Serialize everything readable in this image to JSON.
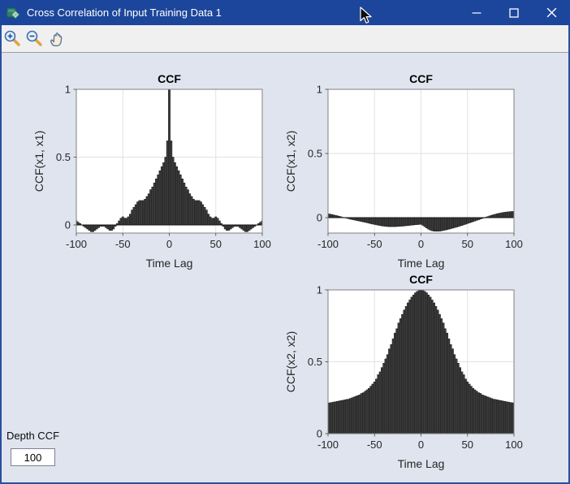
{
  "window": {
    "title": "Cross Correlation of Input Training Data 1",
    "titlebar_color": "#1c469b",
    "controls": [
      "minimize",
      "maximize",
      "close"
    ]
  },
  "toolbar": {
    "buttons": [
      {
        "icon": "zoom-in-icon"
      },
      {
        "icon": "zoom-out-icon"
      },
      {
        "icon": "pan-hand-icon"
      }
    ]
  },
  "panel": {
    "depth_label": "Depth CCF",
    "depth_value": "100"
  },
  "colors": {
    "figure_bg": "#dfe4ef",
    "axes_bg": "#ffffff",
    "bar_fill": "#3d3d3d",
    "bar_edge": "#161616",
    "grid": "#e2e2e2",
    "axes_border": "#818181",
    "text": "#262626"
  },
  "chart_data": [
    {
      "type": "bar",
      "title": "CCF",
      "xlabel": "Time Lag",
      "ylabel": "CCF(x1, x1)",
      "xlim": [
        -100,
        100
      ],
      "ylim": [
        -0.06,
        1
      ],
      "xticks": [
        -100,
        -50,
        0,
        50,
        100
      ],
      "yticks": [
        0,
        0.5,
        1
      ],
      "grid": true,
      "legend": null,
      "lags": [
        -100,
        -98,
        -96,
        -94,
        -92,
        -90,
        -88,
        -86,
        -84,
        -82,
        -80,
        -78,
        -76,
        -74,
        -72,
        -70,
        -68,
        -66,
        -64,
        -62,
        -60,
        -58,
        -56,
        -54,
        -52,
        -50,
        -48,
        -46,
        -44,
        -42,
        -40,
        -38,
        -36,
        -34,
        -32,
        -30,
        -28,
        -26,
        -24,
        -22,
        -20,
        -18,
        -16,
        -14,
        -12,
        -10,
        -8,
        -6,
        -4,
        -2,
        0,
        2,
        4,
        6,
        8,
        10,
        12,
        14,
        16,
        18,
        20,
        22,
        24,
        26,
        28,
        30,
        32,
        34,
        36,
        38,
        40,
        42,
        44,
        46,
        48,
        50,
        52,
        54,
        56,
        58,
        60,
        62,
        64,
        66,
        68,
        70,
        72,
        74,
        76,
        78,
        80,
        82,
        84,
        86,
        88,
        90,
        92,
        94,
        96,
        98,
        100
      ],
      "values": [
        0.03,
        0.02,
        0.01,
        0.0,
        -0.01,
        -0.02,
        -0.03,
        -0.04,
        -0.05,
        -0.05,
        -0.04,
        -0.03,
        -0.02,
        -0.01,
        -0.01,
        -0.01,
        -0.02,
        -0.03,
        -0.04,
        -0.04,
        -0.03,
        -0.01,
        0.01,
        0.03,
        0.05,
        0.06,
        0.05,
        0.05,
        0.06,
        0.08,
        0.11,
        0.13,
        0.15,
        0.17,
        0.18,
        0.18,
        0.18,
        0.19,
        0.21,
        0.23,
        0.26,
        0.28,
        0.31,
        0.34,
        0.37,
        0.4,
        0.43,
        0.46,
        0.5,
        0.62,
        1.0,
        0.62,
        0.5,
        0.46,
        0.43,
        0.4,
        0.37,
        0.34,
        0.31,
        0.28,
        0.26,
        0.23,
        0.21,
        0.19,
        0.18,
        0.18,
        0.18,
        0.17,
        0.15,
        0.13,
        0.11,
        0.08,
        0.06,
        0.05,
        0.05,
        0.06,
        0.05,
        0.03,
        0.01,
        -0.01,
        -0.03,
        -0.04,
        -0.04,
        -0.03,
        -0.02,
        -0.01,
        -0.01,
        -0.01,
        -0.02,
        -0.03,
        -0.04,
        -0.05,
        -0.05,
        -0.04,
        -0.03,
        -0.02,
        -0.01,
        0.0,
        0.01,
        0.02,
        0.03
      ]
    },
    {
      "type": "bar",
      "title": "CCF",
      "xlabel": "Time Lag",
      "ylabel": "CCF(x1, x2)",
      "xlim": [
        -100,
        100
      ],
      "ylim": [
        -0.12,
        1
      ],
      "xticks": [
        -100,
        -50,
        0,
        50,
        100
      ],
      "yticks": [
        0,
        0.5,
        1
      ],
      "grid": true,
      "legend": null,
      "lags": [
        -100,
        -98,
        -96,
        -94,
        -92,
        -90,
        -88,
        -86,
        -84,
        -82,
        -80,
        -78,
        -76,
        -74,
        -72,
        -70,
        -68,
        -66,
        -64,
        -62,
        -60,
        -58,
        -56,
        -54,
        -52,
        -50,
        -48,
        -46,
        -44,
        -42,
        -40,
        -38,
        -36,
        -34,
        -32,
        -30,
        -28,
        -26,
        -24,
        -22,
        -20,
        -18,
        -16,
        -14,
        -12,
        -10,
        -8,
        -6,
        -4,
        -2,
        0,
        2,
        4,
        6,
        8,
        10,
        12,
        14,
        16,
        18,
        20,
        22,
        24,
        26,
        28,
        30,
        32,
        34,
        36,
        38,
        40,
        42,
        44,
        46,
        48,
        50,
        52,
        54,
        56,
        58,
        60,
        62,
        64,
        66,
        68,
        70,
        72,
        74,
        76,
        78,
        80,
        82,
        84,
        86,
        88,
        90,
        92,
        94,
        96,
        98,
        100
      ],
      "values": [
        0.03,
        0.028,
        0.025,
        0.022,
        0.018,
        0.015,
        0.011,
        0.007,
        0.003,
        0.0,
        -0.004,
        -0.008,
        -0.012,
        -0.015,
        -0.018,
        -0.021,
        -0.024,
        -0.027,
        -0.03,
        -0.033,
        -0.036,
        -0.04,
        -0.043,
        -0.047,
        -0.05,
        -0.053,
        -0.056,
        -0.059,
        -0.062,
        -0.064,
        -0.066,
        -0.068,
        -0.069,
        -0.07,
        -0.07,
        -0.07,
        -0.07,
        -0.069,
        -0.068,
        -0.067,
        -0.066,
        -0.065,
        -0.063,
        -0.062,
        -0.06,
        -0.058,
        -0.057,
        -0.055,
        -0.054,
        -0.053,
        -0.052,
        -0.06,
        -0.07,
        -0.08,
        -0.09,
        -0.097,
        -0.102,
        -0.105,
        -0.106,
        -0.106,
        -0.105,
        -0.103,
        -0.1,
        -0.097,
        -0.094,
        -0.09,
        -0.086,
        -0.082,
        -0.078,
        -0.074,
        -0.07,
        -0.065,
        -0.061,
        -0.056,
        -0.051,
        -0.046,
        -0.041,
        -0.036,
        -0.031,
        -0.026,
        -0.021,
        -0.016,
        -0.011,
        -0.006,
        -0.001,
        0.004,
        0.009,
        0.014,
        0.019,
        0.023,
        0.027,
        0.031,
        0.034,
        0.037,
        0.04,
        0.042,
        0.044,
        0.046,
        0.047,
        0.048,
        0.049
      ]
    },
    {
      "type": "bar",
      "title": "CCF",
      "xlabel": "Time Lag",
      "ylabel": "CCF(x2, x2)",
      "xlim": [
        -100,
        100
      ],
      "ylim": [
        0,
        1
      ],
      "xticks": [
        -100,
        -50,
        0,
        50,
        100
      ],
      "yticks": [
        0,
        0.5,
        1
      ],
      "grid": true,
      "legend": null,
      "lags": [
        -100,
        -98,
        -96,
        -94,
        -92,
        -90,
        -88,
        -86,
        -84,
        -82,
        -80,
        -78,
        -76,
        -74,
        -72,
        -70,
        -68,
        -66,
        -64,
        -62,
        -60,
        -58,
        -56,
        -54,
        -52,
        -50,
        -48,
        -46,
        -44,
        -42,
        -40,
        -38,
        -36,
        -34,
        -32,
        -30,
        -28,
        -26,
        -24,
        -22,
        -20,
        -18,
        -16,
        -14,
        -12,
        -10,
        -8,
        -6,
        -4,
        -2,
        0,
        2,
        4,
        6,
        8,
        10,
        12,
        14,
        16,
        18,
        20,
        22,
        24,
        26,
        28,
        30,
        32,
        34,
        36,
        38,
        40,
        42,
        44,
        46,
        48,
        50,
        52,
        54,
        56,
        58,
        60,
        62,
        64,
        66,
        68,
        70,
        72,
        74,
        76,
        78,
        80,
        82,
        84,
        86,
        88,
        90,
        92,
        94,
        96,
        98,
        100
      ],
      "values": [
        0.213,
        0.215,
        0.217,
        0.22,
        0.222,
        0.225,
        0.227,
        0.23,
        0.232,
        0.235,
        0.238,
        0.24,
        0.245,
        0.25,
        0.255,
        0.26,
        0.265,
        0.27,
        0.28,
        0.285,
        0.295,
        0.305,
        0.315,
        0.33,
        0.345,
        0.36,
        0.38,
        0.41,
        0.43,
        0.46,
        0.49,
        0.52,
        0.55,
        0.59,
        0.62,
        0.66,
        0.7,
        0.73,
        0.77,
        0.8,
        0.83,
        0.86,
        0.885,
        0.91,
        0.93,
        0.95,
        0.965,
        0.98,
        0.99,
        0.995,
        1.0,
        0.995,
        0.99,
        0.98,
        0.965,
        0.95,
        0.93,
        0.91,
        0.885,
        0.86,
        0.83,
        0.8,
        0.77,
        0.73,
        0.7,
        0.66,
        0.62,
        0.59,
        0.55,
        0.52,
        0.49,
        0.46,
        0.43,
        0.41,
        0.38,
        0.36,
        0.345,
        0.33,
        0.315,
        0.305,
        0.295,
        0.285,
        0.28,
        0.27,
        0.265,
        0.26,
        0.255,
        0.25,
        0.245,
        0.24,
        0.238,
        0.235,
        0.232,
        0.23,
        0.227,
        0.225,
        0.222,
        0.22,
        0.217,
        0.215,
        0.213
      ]
    }
  ]
}
